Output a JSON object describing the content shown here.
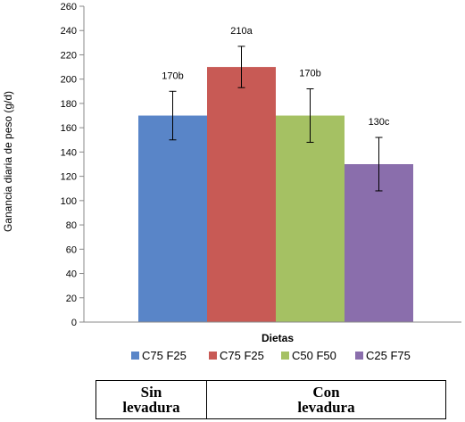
{
  "chart_data": {
    "type": "bar",
    "categories": [
      "C75 F25",
      "C75 F25",
      "C50 F50",
      "C25 F75"
    ],
    "values": [
      170,
      210,
      170,
      130
    ],
    "error_high": [
      190,
      227,
      192,
      152
    ],
    "error_low": [
      150,
      193,
      148,
      108
    ],
    "data_labels": [
      "170b",
      "210a",
      "170b",
      "130c"
    ],
    "colors": [
      "#5985c8",
      "#c85a55",
      "#a5c163",
      "#8a6eac"
    ],
    "xlabel": "Dietas",
    "ylabel": "Ganancia diaria de peso (g/d)",
    "ylim": [
      0,
      260
    ],
    "yticks": [
      0,
      20,
      40,
      60,
      80,
      100,
      120,
      140,
      160,
      180,
      200,
      220,
      240,
      260
    ],
    "grid": false,
    "legend_position": "bottom"
  },
  "groups": [
    {
      "line1": "Sin",
      "line2": "levadura"
    },
    {
      "line1": "Con",
      "line2": "levadura"
    }
  ]
}
